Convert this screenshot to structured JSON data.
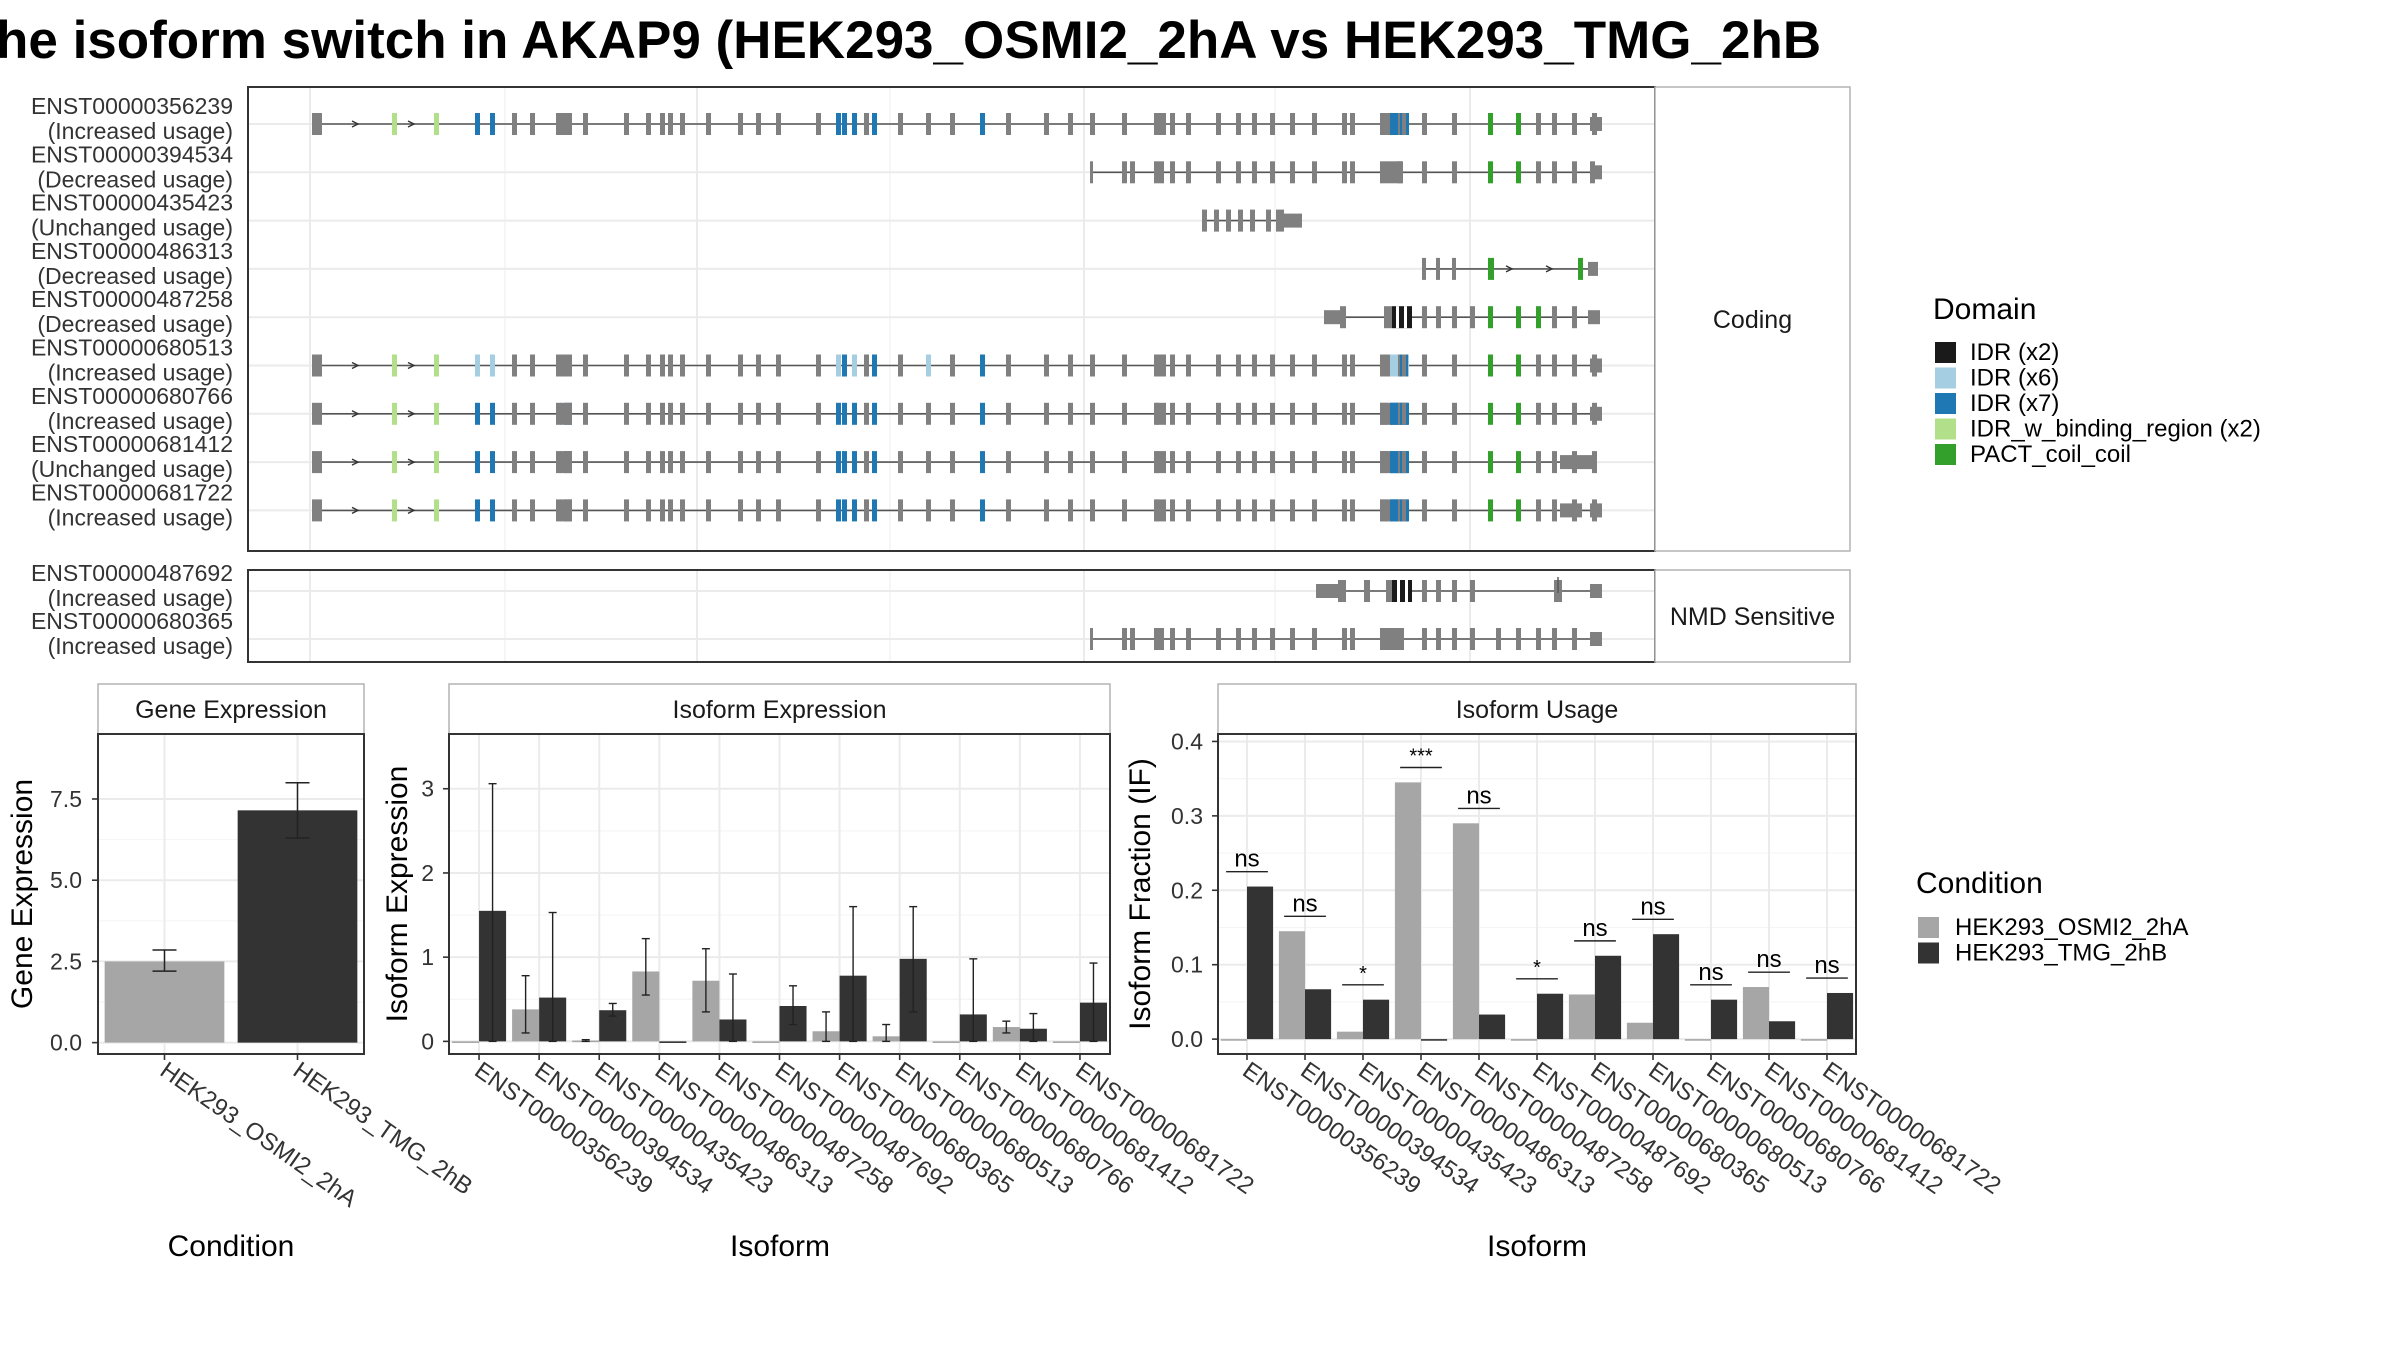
{
  "title": "he isoform switch in AKAP9 (HEK293_OSMI2_2hA vs HEK293_TMG_2hB",
  "colors": {
    "exon": "#808080",
    "osmi": "#a6a6a6",
    "tmg": "#333333",
    "idr2": "#1a1a1a",
    "idr6": "#a6cee3",
    "idr7": "#1f78b4",
    "idrw": "#b2df8a",
    "pact": "#33a02c"
  },
  "transcripts": {
    "coding_label": "Coding",
    "nmd_label": "NMD Sensitive",
    "coding": [
      {
        "id": "ENST00000356239",
        "usage": "(Increased usage)"
      },
      {
        "id": "ENST00000394534",
        "usage": "(Decreased usage)"
      },
      {
        "id": "ENST00000435423",
        "usage": "(Unchanged usage)"
      },
      {
        "id": "ENST00000486313",
        "usage": "(Decreased usage)"
      },
      {
        "id": "ENST00000487258",
        "usage": "(Decreased usage)"
      },
      {
        "id": "ENST00000680513",
        "usage": "(Increased usage)"
      },
      {
        "id": "ENST00000680766",
        "usage": "(Increased usage)"
      },
      {
        "id": "ENST00000681412",
        "usage": "(Unchanged usage)"
      },
      {
        "id": "ENST00000681722",
        "usage": "(Increased usage)"
      }
    ],
    "nmd": [
      {
        "id": "ENST00000487692",
        "usage": "(Increased usage)"
      },
      {
        "id": "ENST00000680365",
        "usage": "(Increased usage)"
      }
    ]
  },
  "domain_legend": {
    "title": "Domain",
    "items": [
      {
        "label": "IDR (x2)",
        "color": "#1a1a1a"
      },
      {
        "label": "IDR (x6)",
        "color": "#a6cee3"
      },
      {
        "label": "IDR (x7)",
        "color": "#1f78b4"
      },
      {
        "label": "IDR_w_binding_region (x2)",
        "color": "#b2df8a"
      },
      {
        "label": "PACT_coil_coil",
        "color": "#33a02c"
      }
    ]
  },
  "condition_legend": {
    "title": "Condition",
    "items": [
      {
        "label": "HEK293_OSMI2_2hA",
        "color": "#a6a6a6"
      },
      {
        "label": "HEK293_TMG_2hB",
        "color": "#333333"
      }
    ]
  },
  "chart_data": [
    {
      "type": "bar",
      "panel": "Gene Expression",
      "xlabel": "Condition",
      "ylabel": "Gene Expression",
      "categories": [
        "HEK293_OSMI2_2hA",
        "HEK293_TMG_2hB"
      ],
      "values": [
        2.5,
        7.15
      ],
      "error_low": [
        2.2,
        6.3
      ],
      "error_high": [
        2.85,
        8.0
      ],
      "ylim": [
        -0.35,
        9.5
      ],
      "yticks": [
        "0.0",
        "2.5",
        "5.0",
        "7.5"
      ],
      "ytick_values": [
        0,
        2.5,
        5,
        7.5
      ]
    },
    {
      "type": "bar",
      "panel": "Isoform Expression",
      "xlabel": "Isoform",
      "ylabel": "Isoform Expression",
      "categories": [
        "ENST00000356239",
        "ENST00000394534",
        "ENST00000435423",
        "ENST00000486313",
        "ENST00000487258",
        "ENST00000487692",
        "ENST00000680365",
        "ENST00000680513",
        "ENST00000680766",
        "ENST00000681412",
        "ENST00000681722"
      ],
      "ylim": [
        -0.15,
        3.65
      ],
      "yticks": [
        "0",
        "1",
        "2",
        "3"
      ],
      "ytick_values": [
        0,
        1,
        2,
        3
      ],
      "series": [
        {
          "name": "HEK293_OSMI2_2hA",
          "values": [
            0,
            0.38,
            0.01,
            0.83,
            0.72,
            0,
            0.12,
            0.06,
            0,
            0.17,
            0
          ],
          "error_low": [
            0,
            0.1,
            0,
            0.55,
            0.35,
            0,
            0,
            0,
            0,
            0.1,
            0
          ],
          "error_high": [
            0,
            0.78,
            0.02,
            1.22,
            1.1,
            0,
            0.35,
            0.2,
            0,
            0.24,
            0
          ]
        },
        {
          "name": "HEK293_TMG_2hB",
          "values": [
            1.55,
            0.52,
            0.37,
            0,
            0.26,
            0.42,
            0.78,
            0.98,
            0.32,
            0.15,
            0.46
          ],
          "error_low": [
            0,
            0,
            0.3,
            0,
            0,
            0.2,
            0,
            0.35,
            0,
            0,
            0
          ],
          "error_high": [
            3.06,
            1.53,
            0.45,
            0,
            0.8,
            0.66,
            1.6,
            1.6,
            0.98,
            0.33,
            0.93
          ]
        }
      ]
    },
    {
      "type": "bar",
      "panel": "Isoform Usage",
      "xlabel": "Isoform",
      "ylabel": "Isoform Fraction (IF)",
      "categories": [
        "ENST00000356239",
        "ENST00000394534",
        "ENST00000435423",
        "ENST00000486313",
        "ENST00000487258",
        "ENST00000487692",
        "ENST00000680365",
        "ENST00000680513",
        "ENST00000680766",
        "ENST00000681412",
        "ENST00000681722"
      ],
      "ylim": [
        -0.02,
        0.41
      ],
      "yticks": [
        "0.0",
        "0.1",
        "0.2",
        "0.3",
        "0.4"
      ],
      "ytick_values": [
        0,
        0.1,
        0.2,
        0.3,
        0.4
      ],
      "series": [
        {
          "name": "HEK293_OSMI2_2hA",
          "values": [
            0,
            0.145,
            0.01,
            0.345,
            0.29,
            0,
            0.06,
            0.022,
            0,
            0.07,
            0
          ]
        },
        {
          "name": "HEK293_TMG_2hB",
          "values": [
            0.205,
            0.067,
            0.053,
            0,
            0.033,
            0.061,
            0.112,
            0.141,
            0.053,
            0.024,
            0.062
          ]
        }
      ],
      "significance": [
        "ns",
        "ns",
        "*",
        "***",
        "ns",
        "*",
        "ns",
        "ns",
        "ns",
        "ns",
        "ns"
      ],
      "significance_y": [
        0.225,
        0.165,
        0.073,
        0.365,
        0.31,
        0.081,
        0.132,
        0.161,
        0.073,
        0.09,
        0.082
      ]
    }
  ]
}
